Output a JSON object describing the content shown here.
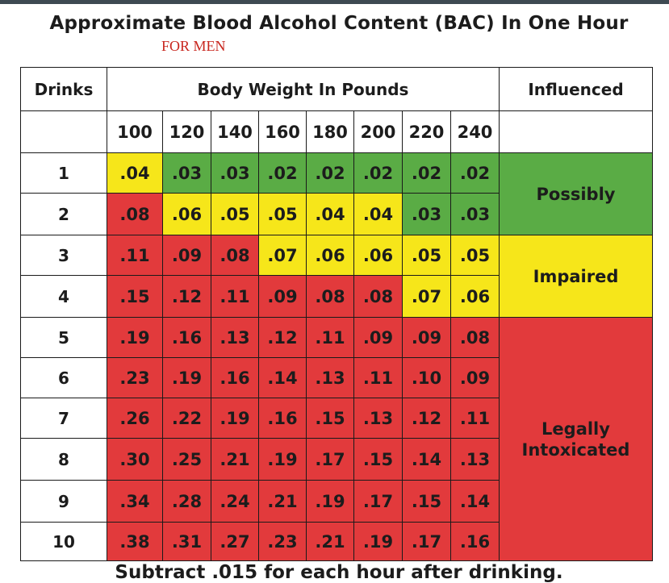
{
  "title": "Approximate Blood Alcohol Content (BAC) In One Hour",
  "subtitle": "FOR MEN",
  "footer": "Subtract .015 for each hour after drinking.",
  "colors": {
    "green": "#5aac45",
    "yellow": "#f6e61a",
    "red": "#e23a3c",
    "white": "#ffffff",
    "border": "#1a1a1a",
    "top_bar": "#3e4a52"
  },
  "chart_data": {
    "type": "table",
    "headers": {
      "drinks": "Drinks",
      "body_weight": "Body Weight In Pounds",
      "influenced": "Influenced"
    },
    "weights": [
      "100",
      "120",
      "140",
      "160",
      "180",
      "200",
      "220",
      "240"
    ],
    "rows": [
      {
        "drinks": "1",
        "values": [
          ".04",
          ".03",
          ".03",
          ".02",
          ".02",
          ".02",
          ".02",
          ".02"
        ],
        "levels": [
          "yellow",
          "green",
          "green",
          "green",
          "green",
          "green",
          "green",
          "green"
        ]
      },
      {
        "drinks": "2",
        "values": [
          ".08",
          ".06",
          ".05",
          ".05",
          ".04",
          ".04",
          ".03",
          ".03"
        ],
        "levels": [
          "red",
          "yellow",
          "yellow",
          "yellow",
          "yellow",
          "yellow",
          "green",
          "green"
        ]
      },
      {
        "drinks": "3",
        "values": [
          ".11",
          ".09",
          ".08",
          ".07",
          ".06",
          ".06",
          ".05",
          ".05"
        ],
        "levels": [
          "red",
          "red",
          "red",
          "yellow",
          "yellow",
          "yellow",
          "yellow",
          "yellow"
        ]
      },
      {
        "drinks": "4",
        "values": [
          ".15",
          ".12",
          ".11",
          ".09",
          ".08",
          ".08",
          ".07",
          ".06"
        ],
        "levels": [
          "red",
          "red",
          "red",
          "red",
          "red",
          "red",
          "yellow",
          "yellow"
        ]
      },
      {
        "drinks": "5",
        "values": [
          ".19",
          ".16",
          ".13",
          ".12",
          ".11",
          ".09",
          ".09",
          ".08"
        ],
        "levels": [
          "red",
          "red",
          "red",
          "red",
          "red",
          "red",
          "red",
          "red"
        ]
      },
      {
        "drinks": "6",
        "values": [
          ".23",
          ".19",
          ".16",
          ".14",
          ".13",
          ".11",
          ".10",
          ".09"
        ],
        "levels": [
          "red",
          "red",
          "red",
          "red",
          "red",
          "red",
          "red",
          "red"
        ]
      },
      {
        "drinks": "7",
        "values": [
          ".26",
          ".22",
          ".19",
          ".16",
          ".15",
          ".13",
          ".12",
          ".11"
        ],
        "levels": [
          "red",
          "red",
          "red",
          "red",
          "red",
          "red",
          "red",
          "red"
        ]
      },
      {
        "drinks": "8",
        "values": [
          ".30",
          ".25",
          ".21",
          ".19",
          ".17",
          ".15",
          ".14",
          ".13"
        ],
        "levels": [
          "red",
          "red",
          "red",
          "red",
          "red",
          "red",
          "red",
          "red"
        ]
      },
      {
        "drinks": "9",
        "values": [
          ".34",
          ".28",
          ".24",
          ".21",
          ".19",
          ".17",
          ".15",
          ".14"
        ],
        "levels": [
          "red",
          "red",
          "red",
          "red",
          "red",
          "red",
          "red",
          "red"
        ]
      },
      {
        "drinks": "10",
        "values": [
          ".38",
          ".31",
          ".27",
          ".23",
          ".21",
          ".19",
          ".17",
          ".16"
        ],
        "levels": [
          "red",
          "red",
          "red",
          "red",
          "red",
          "red",
          "red",
          "red"
        ]
      }
    ],
    "influence_zones": [
      {
        "label": [
          "Possibly"
        ],
        "color": "green",
        "from_drink": 1,
        "to_drink": 2
      },
      {
        "label": [
          "Impaired"
        ],
        "color": "yellow",
        "from_drink": 3,
        "to_drink": 4
      },
      {
        "label": [
          "Legally",
          "Intoxicated"
        ],
        "color": "red",
        "from_drink": 5,
        "to_drink": 10
      }
    ]
  }
}
